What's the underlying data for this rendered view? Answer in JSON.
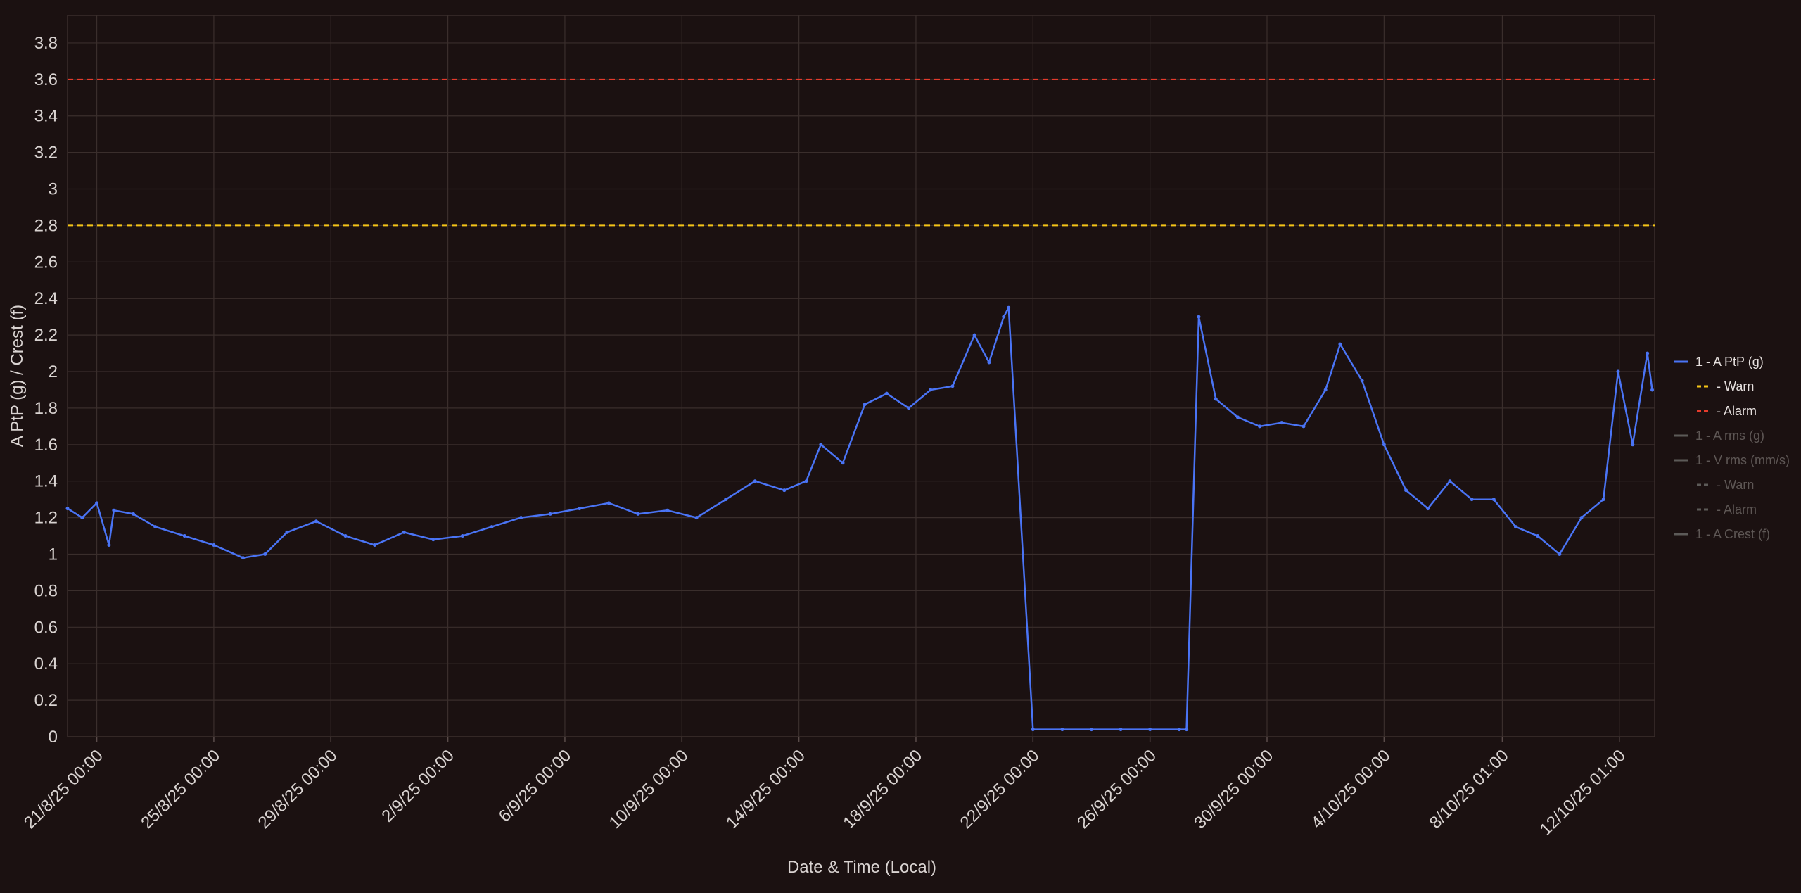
{
  "chart_data": {
    "type": "line",
    "xlabel": "Date & Time (Local)",
    "ylabel": "A PtP (g) / Crest (f)",
    "ylim": [
      0,
      3.95
    ],
    "yticks": [
      0,
      0.2,
      0.4,
      0.6,
      0.8,
      1,
      1.2,
      1.4,
      1.6,
      1.8,
      2,
      2.2,
      2.4,
      2.6,
      2.8,
      3,
      3.2,
      3.4,
      3.6,
      3.8
    ],
    "ytick_labels": [
      "0",
      "0.2",
      "0.4",
      "0.6",
      "0.8",
      "1",
      "1.2",
      "1.4",
      "1.6",
      "1.8",
      "2",
      "2.2",
      "2.4",
      "2.6",
      "2.8",
      "3",
      "3.2",
      "3.4",
      "3.6",
      "3.8"
    ],
    "xlim": [
      "2025-08-20T00:00",
      "2025-10-13T06:00"
    ],
    "xticks": [
      "2025-08-21T00:00",
      "2025-08-25T00:00",
      "2025-08-29T00:00",
      "2025-09-02T00:00",
      "2025-09-06T00:00",
      "2025-09-10T00:00",
      "2025-09-14T00:00",
      "2025-09-18T00:00",
      "2025-09-22T00:00",
      "2025-09-26T00:00",
      "2025-09-30T00:00",
      "2025-10-04T00:00",
      "2025-10-08T01:00",
      "2025-10-12T01:00"
    ],
    "xtick_labels": [
      "21/8/25 00:00",
      "25/8/25 00:00",
      "29/8/25 00:00",
      "2/9/25 00:00",
      "6/9/25 00:00",
      "10/9/25 00:00",
      "14/9/25 00:00",
      "18/9/25 00:00",
      "22/9/25 00:00",
      "26/9/25 00:00",
      "30/9/25 00:00",
      "4/10/25 00:00",
      "8/10/25 01:00",
      "12/10/25 01:00"
    ],
    "grid": true,
    "legend_position": "right",
    "thresholds": [
      {
        "name": "- Warn",
        "value": 2.8,
        "color": "#f5c518",
        "style": "dashed"
      },
      {
        "name": "- Alarm",
        "value": 3.6,
        "color": "#e53b2c",
        "style": "dashed"
      }
    ],
    "series": [
      {
        "name": "1 - A PtP (g)",
        "color": "#4a74f5",
        "x": [
          "2025-08-20T00:00",
          "2025-08-20T12:00",
          "2025-08-21T00:00",
          "2025-08-21T10:00",
          "2025-08-21T14:00",
          "2025-08-22T06:00",
          "2025-08-23T00:00",
          "2025-08-24T00:00",
          "2025-08-25T00:00",
          "2025-08-26T00:00",
          "2025-08-26T18:00",
          "2025-08-27T12:00",
          "2025-08-28T12:00",
          "2025-08-29T12:00",
          "2025-08-30T12:00",
          "2025-08-31T12:00",
          "2025-09-01T12:00",
          "2025-09-02T12:00",
          "2025-09-03T12:00",
          "2025-09-04T12:00",
          "2025-09-05T12:00",
          "2025-09-06T12:00",
          "2025-09-07T12:00",
          "2025-09-08T12:00",
          "2025-09-09T12:00",
          "2025-09-10T12:00",
          "2025-09-11T12:00",
          "2025-09-12T12:00",
          "2025-09-13T12:00",
          "2025-09-14T06:00",
          "2025-09-14T18:00",
          "2025-09-15T12:00",
          "2025-09-16T06:00",
          "2025-09-17T00:00",
          "2025-09-17T18:00",
          "2025-09-18T12:00",
          "2025-09-19T06:00",
          "2025-09-20T00:00",
          "2025-09-20T12:00",
          "2025-09-21T00:00",
          "2025-09-21T04:00",
          "2025-09-22T00:00",
          "2025-09-23T00:00",
          "2025-09-24T00:00",
          "2025-09-25T00:00",
          "2025-09-26T00:00",
          "2025-09-27T00:00",
          "2025-09-27T06:00",
          "2025-09-27T16:00",
          "2025-09-28T06:00",
          "2025-09-29T00:00",
          "2025-09-29T18:00",
          "2025-09-30T12:00",
          "2025-10-01T06:00",
          "2025-10-02T00:00",
          "2025-10-02T12:00",
          "2025-10-03T06:00",
          "2025-10-04T00:00",
          "2025-10-04T18:00",
          "2025-10-05T12:00",
          "2025-10-06T06:00",
          "2025-10-07T00:00",
          "2025-10-07T18:00",
          "2025-10-08T12:00",
          "2025-10-09T06:00",
          "2025-10-10T00:00",
          "2025-10-10T18:00",
          "2025-10-11T12:00",
          "2025-10-12T00:00",
          "2025-10-12T12:00",
          "2025-10-13T00:00",
          "2025-10-13T04:00"
        ],
        "y": [
          1.25,
          1.2,
          1.28,
          1.05,
          1.24,
          1.22,
          1.15,
          1.1,
          1.05,
          0.98,
          1.0,
          1.12,
          1.18,
          1.1,
          1.05,
          1.12,
          1.08,
          1.1,
          1.15,
          1.2,
          1.22,
          1.25,
          1.28,
          1.22,
          1.24,
          1.2,
          1.3,
          1.4,
          1.35,
          1.4,
          1.6,
          1.5,
          1.82,
          1.88,
          1.8,
          1.9,
          1.92,
          2.2,
          2.05,
          2.3,
          2.35,
          0.04,
          0.04,
          0.04,
          0.04,
          0.04,
          0.04,
          0.04,
          2.3,
          1.85,
          1.75,
          1.7,
          1.72,
          1.7,
          1.9,
          2.15,
          1.95,
          1.6,
          1.35,
          1.25,
          1.4,
          1.3,
          1.3,
          1.15,
          1.1,
          1.0,
          1.2,
          1.3,
          2.0,
          1.6,
          2.1,
          1.9
        ]
      }
    ],
    "legend": [
      {
        "label": "1 - A PtP (g)",
        "color": "#4a74f5",
        "style": "solid",
        "active": true
      },
      {
        "label": "- Warn",
        "color": "#f5c518",
        "style": "dashed",
        "active": true
      },
      {
        "label": "- Alarm",
        "color": "#e53b2c",
        "style": "dashed",
        "active": true
      },
      {
        "label": "1 - A rms (g)",
        "color": "#5c5a58",
        "style": "solid",
        "active": false
      },
      {
        "label": "1 - V rms (mm/s)",
        "color": "#5c5a58",
        "style": "solid",
        "active": false
      },
      {
        "label": "- Warn",
        "color": "#5c5a58",
        "style": "dashed",
        "active": false
      },
      {
        "label": "- Alarm",
        "color": "#5c5a58",
        "style": "dashed",
        "active": false
      },
      {
        "label": "1 - A Crest (f)",
        "color": "#5c5a58",
        "style": "solid",
        "active": false
      }
    ]
  }
}
